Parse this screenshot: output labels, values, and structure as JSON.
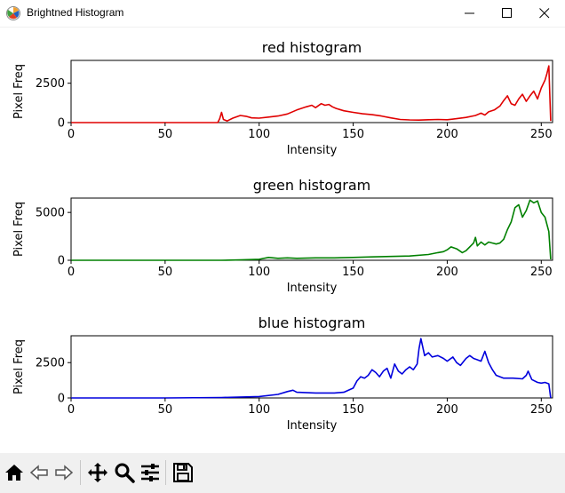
{
  "window": {
    "title": "Brightned Histogram",
    "icon": "matplotlib-app-icon"
  },
  "toolbar": {
    "buttons": [
      "home-icon",
      "back-icon",
      "forward-icon",
      "pan-icon",
      "zoom-icon",
      "configure-subplots-icon",
      "save-icon"
    ]
  },
  "chart_data": [
    {
      "type": "line",
      "title": "red histogram",
      "xlabel": "Intensity",
      "ylabel": "Pixel Freq",
      "xlim": [
        0,
        256
      ],
      "ylim": [
        0,
        3950
      ],
      "xticks": [
        "0",
        "50",
        "100",
        "150",
        "200",
        "250"
      ],
      "yticks": [
        "0",
        "2500"
      ],
      "color": "#e00000",
      "series": [
        {
          "x": [
            0,
            60,
            78,
            79,
            80,
            81,
            83,
            86,
            90,
            93,
            96,
            100,
            105,
            110,
            115,
            120,
            125,
            128,
            130,
            133,
            135,
            137,
            139,
            141,
            145,
            150,
            155,
            160,
            165,
            170,
            175,
            180,
            185,
            190,
            195,
            200,
            205,
            210,
            215,
            218,
            220,
            222,
            225,
            228,
            230,
            232,
            234,
            236,
            238,
            240,
            242,
            244,
            246,
            248,
            250,
            252,
            253,
            254,
            255
          ],
          "y": [
            0,
            0,
            0,
            250,
            650,
            200,
            100,
            280,
            450,
            400,
            300,
            280,
            350,
            420,
            550,
            800,
            1000,
            1100,
            950,
            1200,
            1100,
            1150,
            1000,
            900,
            750,
            650,
            560,
            500,
            420,
            300,
            200,
            170,
            160,
            180,
            200,
            180,
            250,
            330,
            450,
            600,
            480,
            680,
            800,
            1050,
            1400,
            1700,
            1200,
            1100,
            1500,
            1800,
            1350,
            1700,
            2000,
            1500,
            2200,
            2700,
            3100,
            3600,
            100
          ]
        }
      ]
    },
    {
      "type": "line",
      "title": "green histogram",
      "xlabel": "Intensity",
      "ylabel": "Pixel Freq",
      "xlim": [
        0,
        256
      ],
      "ylim": [
        0,
        6500
      ],
      "xticks": [
        "0",
        "50",
        "100",
        "150",
        "200",
        "250"
      ],
      "yticks": [
        "0",
        "5000"
      ],
      "color": "#008000",
      "series": [
        {
          "x": [
            0,
            80,
            90,
            100,
            105,
            110,
            115,
            120,
            130,
            140,
            150,
            160,
            170,
            180,
            190,
            195,
            198,
            200,
            202,
            205,
            208,
            210,
            212,
            214,
            215,
            216,
            218,
            220,
            222,
            224,
            226,
            228,
            230,
            232,
            234,
            236,
            238,
            240,
            242,
            244,
            246,
            248,
            250,
            252,
            254,
            255
          ],
          "y": [
            0,
            0,
            40,
            100,
            300,
            200,
            250,
            200,
            250,
            250,
            300,
            350,
            400,
            450,
            600,
            800,
            900,
            1100,
            1400,
            1200,
            800,
            1000,
            1400,
            1800,
            2400,
            1500,
            1900,
            1600,
            1900,
            1800,
            1700,
            1800,
            2200,
            3200,
            4000,
            5500,
            5800,
            4500,
            5200,
            6300,
            6000,
            6200,
            5000,
            4500,
            3000,
            100
          ]
        }
      ]
    },
    {
      "type": "line",
      "title": "blue histogram",
      "xlabel": "Intensity",
      "ylabel": "Pixel Freq",
      "xlim": [
        0,
        256
      ],
      "ylim": [
        0,
        4400
      ],
      "xticks": [
        "0",
        "50",
        "100",
        "150",
        "200",
        "250"
      ],
      "yticks": [
        "0",
        "2500"
      ],
      "color": "#0000dd",
      "series": [
        {
          "x": [
            0,
            50,
            80,
            100,
            110,
            115,
            118,
            120,
            130,
            140,
            145,
            150,
            152,
            154,
            156,
            158,
            160,
            162,
            164,
            166,
            168,
            170,
            172,
            174,
            176,
            178,
            180,
            182,
            184,
            185,
            186,
            188,
            190,
            192,
            195,
            198,
            200,
            203,
            205,
            207,
            210,
            212,
            214,
            216,
            218,
            220,
            222,
            224,
            226,
            228,
            230,
            235,
            240,
            242,
            243,
            245,
            248,
            250,
            252,
            254,
            255
          ],
          "y": [
            0,
            0,
            30,
            100,
            250,
            450,
            550,
            400,
            350,
            350,
            400,
            700,
            1200,
            1500,
            1400,
            1600,
            2000,
            1800,
            1500,
            1900,
            2100,
            1400,
            2400,
            1900,
            1700,
            2000,
            2200,
            2000,
            2400,
            3500,
            4200,
            3000,
            3200,
            2900,
            3000,
            2800,
            2600,
            2900,
            2500,
            2300,
            2800,
            3000,
            2800,
            2700,
            2600,
            3300,
            2500,
            2000,
            1600,
            1500,
            1400,
            1400,
            1350,
            1600,
            1900,
            1300,
            1100,
            1050,
            1100,
            1000,
            0
          ]
        }
      ]
    }
  ]
}
